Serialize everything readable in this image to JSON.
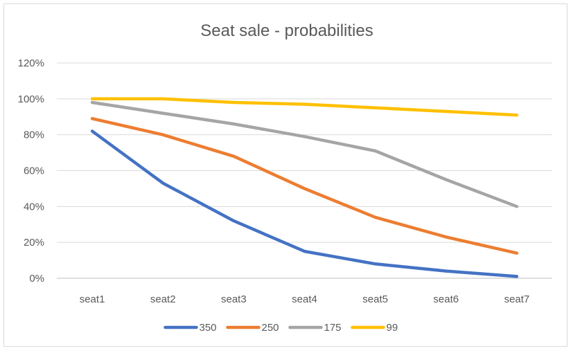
{
  "chart_data": {
    "type": "line",
    "title": "Seat sale - probabilities",
    "categories": [
      "seat1",
      "seat2",
      "seat3",
      "seat4",
      "seat5",
      "seat6",
      "seat7"
    ],
    "ylim": [
      0,
      120
    ],
    "yticks": [
      "0%",
      "20%",
      "40%",
      "60%",
      "80%",
      "100%",
      "120%"
    ],
    "ytick_values": [
      0,
      20,
      40,
      60,
      80,
      100,
      120
    ],
    "grid": true,
    "legend_position": "bottom",
    "series": [
      {
        "name": "350",
        "color": "#4472c4",
        "values": [
          82,
          53,
          32,
          15,
          8,
          4,
          1
        ]
      },
      {
        "name": "250",
        "color": "#ed7d31",
        "values": [
          89,
          80,
          68,
          50,
          34,
          23,
          14
        ]
      },
      {
        "name": "175",
        "color": "#a5a5a5",
        "values": [
          98,
          92,
          86,
          79,
          71,
          55,
          40
        ]
      },
      {
        "name": "99",
        "color": "#ffc000",
        "values": [
          100,
          100,
          98,
          97,
          95,
          93,
          91
        ]
      }
    ]
  }
}
